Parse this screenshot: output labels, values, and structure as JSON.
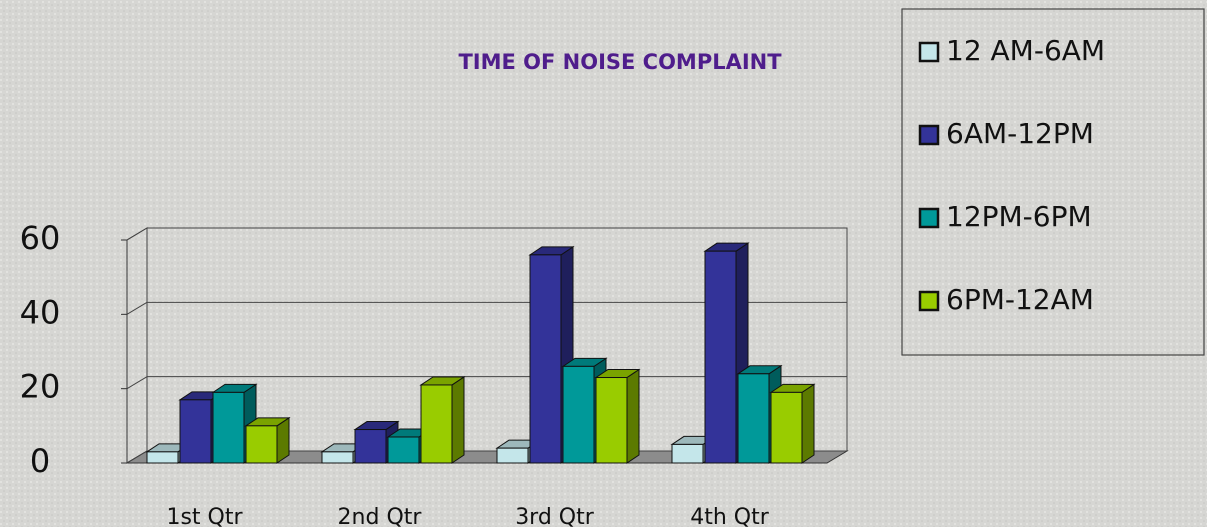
{
  "chart_data": {
    "type": "bar3d",
    "title": "TIME OF NOISE COMPLAINT",
    "categories": [
      "1st Qtr",
      "2nd Qtr",
      "3rd Qtr",
      "4th Qtr"
    ],
    "series": [
      {
        "name": "12 AM-6AM",
        "color": "#c4e6ea",
        "values": [
          3,
          3,
          4,
          5
        ]
      },
      {
        "name": "6AM-12PM",
        "color": "#333399",
        "values": [
          17,
          9,
          56,
          57
        ]
      },
      {
        "name": "12PM-6PM",
        "color": "#009999",
        "values": [
          19,
          7,
          26,
          24
        ]
      },
      {
        "name": "6PM-12AM",
        "color": "#99cc00",
        "values": [
          10,
          21,
          23,
          19
        ]
      }
    ],
    "ylim": [
      0,
      60
    ],
    "yticks": [
      0,
      20,
      40,
      60
    ],
    "grid": true,
    "legend": "right"
  }
}
